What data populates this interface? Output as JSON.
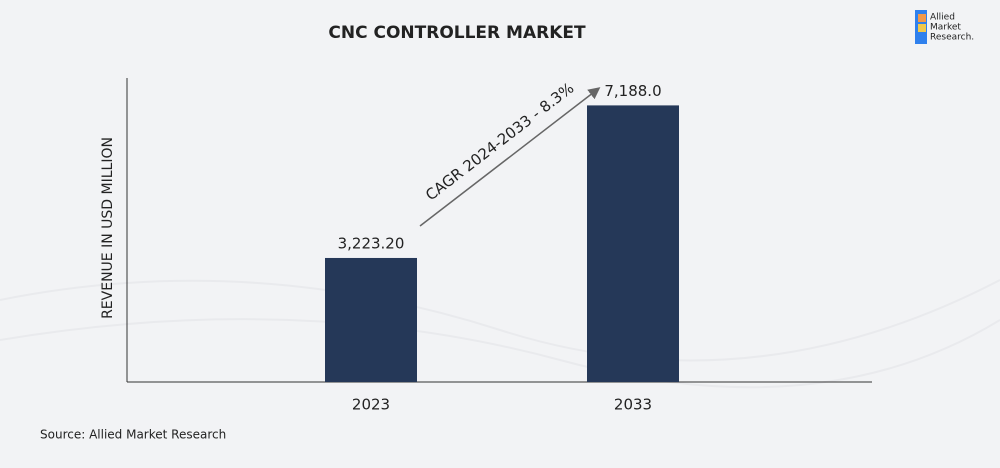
{
  "chart_data": {
    "type": "bar",
    "title": "CNC CONTROLLER MARKET",
    "y_label": "REVENUE IN USD MILLION",
    "categories": [
      "2023",
      "2033"
    ],
    "values": [
      3223.2,
      7188.0
    ],
    "value_labels": [
      "3,223.20",
      "7,188.0"
    ],
    "color": "#253858",
    "ylim": [
      0,
      7900
    ],
    "annotation": "CAGR 2024-2033 - 8.3%",
    "source": "Source: Allied Market Research"
  },
  "logo": {
    "lines": [
      "Allied",
      "Market",
      "Research."
    ]
  }
}
